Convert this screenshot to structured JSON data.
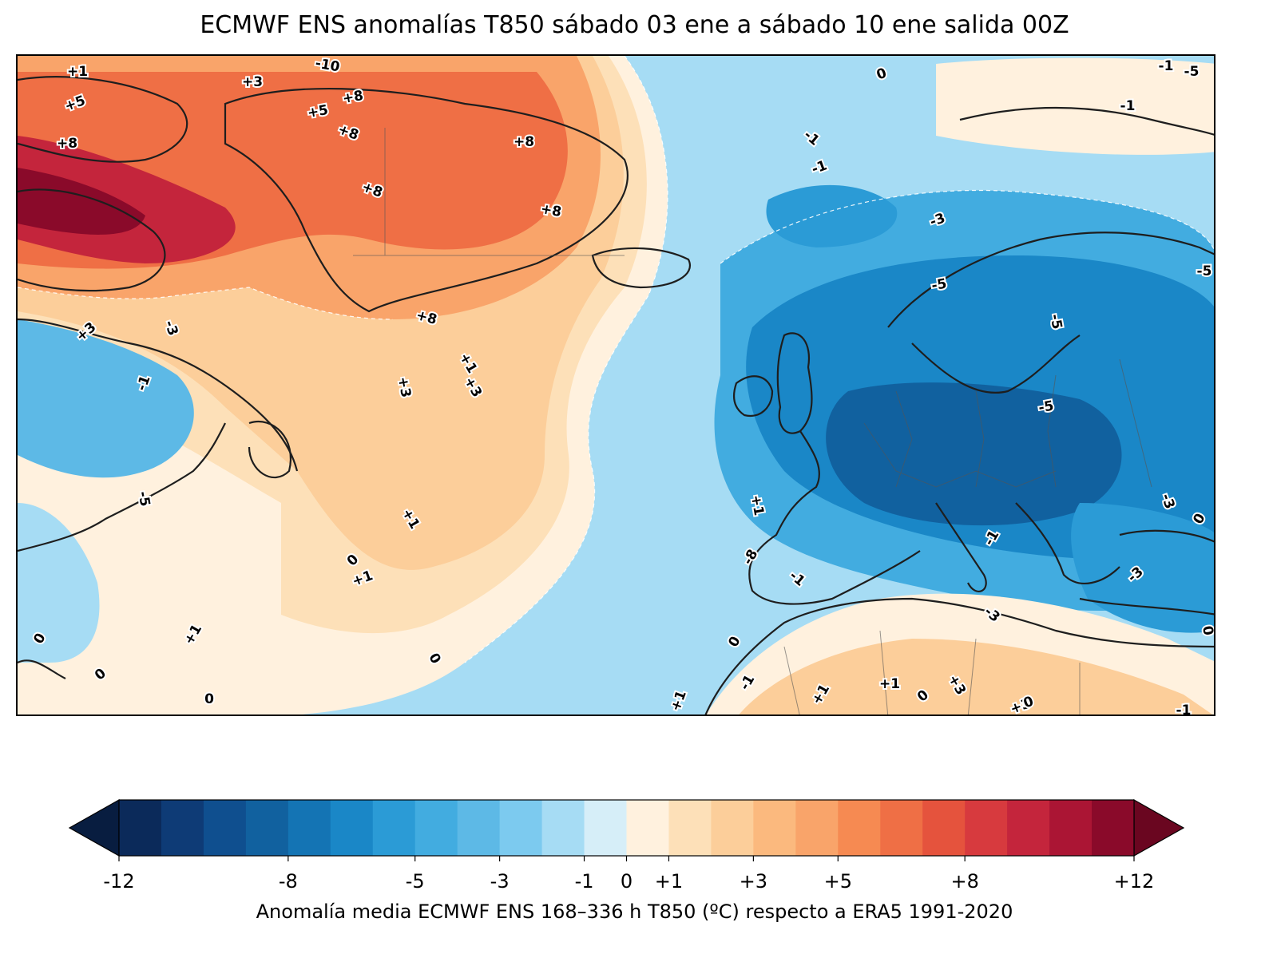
{
  "title": "ECMWF ENS anomalías T850 sábado 03 ene a sábado 10 ene salida 00Z",
  "colors": {
    "levels": [
      -12,
      -11,
      -10,
      -9,
      -8,
      -7,
      -6,
      -5,
      -4,
      -3,
      -2,
      -1,
      0,
      1,
      2,
      3,
      4,
      5,
      6,
      7,
      8,
      9,
      10,
      11,
      12
    ],
    "fills": [
      "#0b2a5a",
      "#0e3b76",
      "#0f4f8f",
      "#11619f",
      "#1474b4",
      "#1a87c7",
      "#2b9bd6",
      "#42ace0",
      "#5db9e6",
      "#7ccaef",
      "#a6dcf4",
      "#d6eef8",
      "#fff1de",
      "#fde0b8",
      "#fcce9a",
      "#fbb97e",
      "#f9a46a",
      "#f68a52",
      "#ef6f45",
      "#e5533d",
      "#d73a3e",
      "#c4253c",
      "#ab1534",
      "#8a0a2a"
    ],
    "under": "#081d40",
    "over": "#6a0620",
    "coast": "#1e1e1e",
    "border": "#555555"
  },
  "colorbar": {
    "ticks": [
      "-12",
      "-8",
      "-5",
      "-3",
      "-1",
      "0",
      "+1",
      "+3",
      "+5",
      "+8",
      "+12"
    ],
    "label": "Anomalía media ECMWF ENS 168–336 h T850 (ºC) respecto a ERA5 1991-2020"
  },
  "contour_labels": [
    "+1",
    "-10",
    "+3",
    "+5",
    "+8",
    "+5",
    "+8",
    "+8",
    "+8",
    "+8",
    "+8",
    "+8",
    "+1",
    "+3",
    "+3",
    "+3",
    "-3",
    "-1",
    "-5",
    "+1",
    "0",
    "+1",
    "+1",
    "0",
    "0",
    "0",
    "-1",
    "-1",
    "-1",
    "-3",
    "-5",
    "-5",
    "-5",
    "-5",
    "-1",
    "0",
    "+1",
    "-8",
    "-1",
    "-1",
    "0",
    "-3",
    "-3",
    "0",
    "-1",
    "+1",
    "+1",
    "0",
    "+3",
    "+3",
    "0",
    "+1",
    "-3",
    "-1",
    "0",
    "0",
    "0",
    "-5"
  ]
}
